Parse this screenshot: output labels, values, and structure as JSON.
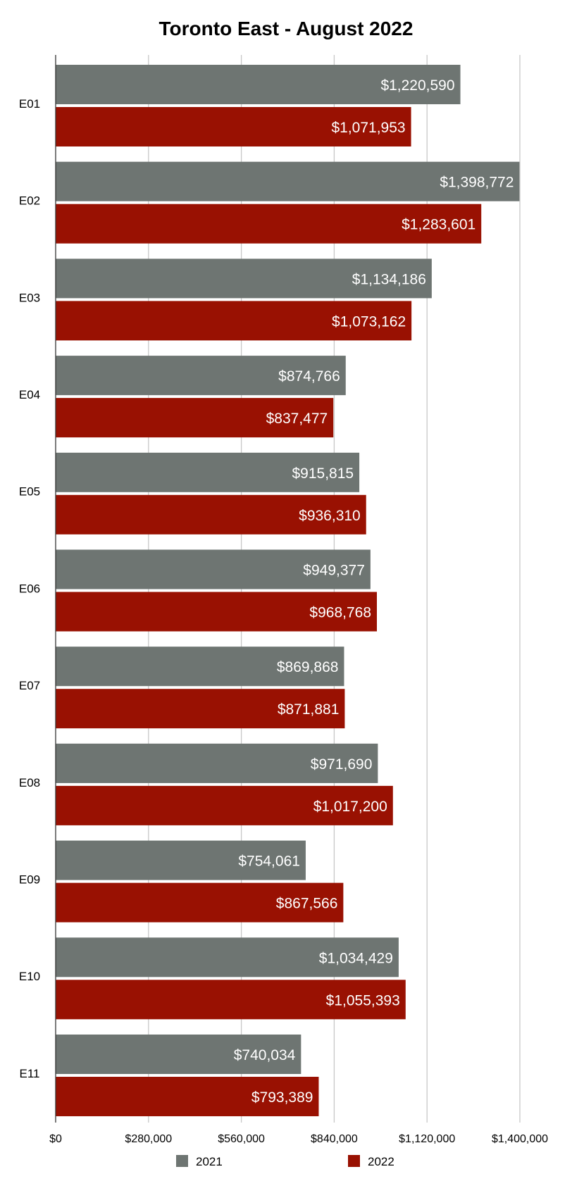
{
  "chart_data": {
    "type": "bar",
    "orientation": "horizontal",
    "title": "Toronto East - August 2022",
    "xlabel": "",
    "ylabel": "",
    "categories": [
      "E01",
      "E02",
      "E03",
      "E04",
      "E05",
      "E06",
      "E07",
      "E08",
      "E09",
      "E10",
      "E11"
    ],
    "series": [
      {
        "name": "2021",
        "color": "#6e7572",
        "values": [
          1220590,
          1398772,
          1134186,
          874766,
          915815,
          949377,
          869868,
          971690,
          754061,
          1034429,
          740034
        ],
        "labels": [
          "$1,220,590",
          "$1,398,772",
          "$1,134,186",
          "$874,766",
          "$915,815",
          "$949,377",
          "$869,868",
          "$971,690",
          "$754,061",
          "$1,034,429",
          "$740,034"
        ]
      },
      {
        "name": "2022",
        "color": "#991102",
        "values": [
          1071953,
          1283601,
          1073162,
          837477,
          936310,
          968768,
          871881,
          1017200,
          867566,
          1055393,
          793389
        ],
        "labels": [
          "$1,071,953",
          "$1,283,601",
          "$1,073,162",
          "$837,477",
          "$936,310",
          "$968,768",
          "$871,881",
          "$1,017,200",
          "$867,566",
          "$1,055,393",
          "$793,389"
        ]
      }
    ],
    "xlim": [
      0,
      1400000
    ],
    "x_ticks": [
      0,
      280000,
      560000,
      840000,
      1120000,
      1400000
    ],
    "x_tick_labels": [
      "$0",
      "$280,000",
      "$560,000",
      "$840,000",
      "$1,120,000",
      "$1,400,000"
    ],
    "grid": true,
    "legend": "bottom"
  }
}
